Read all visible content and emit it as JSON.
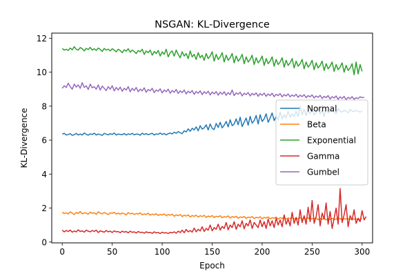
{
  "chart_data": {
    "type": "line",
    "title": "NSGAN: KL-Divergence",
    "xlabel": "Epoch",
    "ylabel": "KL-Divergence",
    "xlim": [
      -10.5,
      310.5
    ],
    "ylim": [
      -0.05,
      12.3
    ],
    "xticks": [
      0,
      50,
      100,
      150,
      200,
      250,
      300
    ],
    "yticks": [
      0,
      2,
      4,
      6,
      8,
      10,
      12
    ],
    "grid": false,
    "legend_position": "center-right",
    "x_step": 2,
    "series": [
      {
        "name": "Normal",
        "color": "#1f77b4",
        "values": [
          6.35,
          6.4,
          6.3,
          6.33,
          6.38,
          6.28,
          6.32,
          6.4,
          6.3,
          6.36,
          6.3,
          6.42,
          6.34,
          6.29,
          6.37,
          6.33,
          6.41,
          6.3,
          6.36,
          6.32,
          6.28,
          6.4,
          6.35,
          6.31,
          6.38,
          6.33,
          6.42,
          6.3,
          6.36,
          6.34,
          6.32,
          6.39,
          6.3,
          6.37,
          6.33,
          6.4,
          6.31,
          6.36,
          6.35,
          6.29,
          6.41,
          6.33,
          6.38,
          6.32,
          6.36,
          6.4,
          6.3,
          6.37,
          6.34,
          6.42,
          6.33,
          6.39,
          6.31,
          6.38,
          6.42,
          6.36,
          6.47,
          6.4,
          6.5,
          6.44,
          6.38,
          6.55,
          6.48,
          6.66,
          6.52,
          6.7,
          6.6,
          6.78,
          6.55,
          6.85,
          6.65,
          6.72,
          6.9,
          6.6,
          6.95,
          6.7,
          6.62,
          6.98,
          6.75,
          7.05,
          6.72,
          6.88,
          7.1,
          6.78,
          7.2,
          6.85,
          6.95,
          7.25,
          6.9,
          7.35,
          6.8,
          7.05,
          7.3,
          6.88,
          7.4,
          7.0,
          7.15,
          7.45,
          6.95,
          7.5,
          7.1,
          7.25,
          7.55,
          7.05,
          7.3,
          7.6,
          7.15,
          7.4,
          7.2,
          7.65,
          7.25,
          7.5,
          7.3,
          7.7,
          7.35,
          7.55,
          7.38,
          7.7,
          7.4,
          8.0,
          7.5,
          7.8,
          7.45,
          7.75,
          7.55,
          7.85,
          7.5,
          7.6,
          7.9,
          7.55,
          7.75,
          7.4,
          7.85,
          7.6,
          7.7,
          7.8,
          7.65,
          7.55,
          7.85,
          7.7,
          7.65,
          7.75,
          7.7,
          7.6,
          7.8,
          7.72,
          7.68,
          7.75,
          7.7,
          7.65,
          7.72
        ]
      },
      {
        "name": "Beta",
        "color": "#ff7f0e",
        "values": [
          1.75,
          1.68,
          1.72,
          1.65,
          1.78,
          1.7,
          1.62,
          1.74,
          1.68,
          1.8,
          1.66,
          1.72,
          1.7,
          1.64,
          1.76,
          1.69,
          1.73,
          1.63,
          1.78,
          1.7,
          1.66,
          1.74,
          1.68,
          1.62,
          1.72,
          1.69,
          1.75,
          1.65,
          1.7,
          1.64,
          1.71,
          1.67,
          1.6,
          1.73,
          1.66,
          1.7,
          1.62,
          1.68,
          1.64,
          1.72,
          1.6,
          1.66,
          1.62,
          1.7,
          1.58,
          1.65,
          1.6,
          1.67,
          1.56,
          1.63,
          1.59,
          1.66,
          1.55,
          1.62,
          1.58,
          1.64,
          1.52,
          1.6,
          1.55,
          1.62,
          1.5,
          1.58,
          1.53,
          1.6,
          1.48,
          1.56,
          1.51,
          1.58,
          1.47,
          1.55,
          1.5,
          1.57,
          1.45,
          1.53,
          1.49,
          1.56,
          1.44,
          1.52,
          1.48,
          1.55,
          1.43,
          1.5,
          1.46,
          1.54,
          1.42,
          1.5,
          1.45,
          1.52,
          1.4,
          1.48,
          1.44,
          1.51,
          1.39,
          1.47,
          1.43,
          1.5,
          1.38,
          1.46,
          1.42,
          1.49,
          1.37,
          1.45,
          1.41,
          1.48,
          1.36,
          1.44,
          1.4,
          1.47,
          1.35,
          1.43,
          1.39,
          1.46,
          1.34,
          1.42,
          1.38,
          1.45,
          1.35,
          1.41,
          1.37,
          1.44,
          1.33,
          1.4,
          1.36,
          1.43,
          1.32,
          1.39,
          1.35,
          1.42,
          1.31,
          1.38,
          1.34,
          1.41,
          1.3,
          1.37,
          1.33,
          1.4,
          1.32,
          1.36,
          1.34,
          1.39,
          1.31,
          1.37,
          1.35,
          1.38,
          1.33,
          1.36,
          1.34,
          1.37,
          1.32,
          1.35,
          1.38
        ]
      },
      {
        "name": "Exponential",
        "color": "#2ca02c",
        "values": [
          11.4,
          11.3,
          11.35,
          11.28,
          11.42,
          11.32,
          11.5,
          11.35,
          11.3,
          11.45,
          11.38,
          11.25,
          11.4,
          11.33,
          11.46,
          11.3,
          11.38,
          11.28,
          11.42,
          11.34,
          11.22,
          11.4,
          11.3,
          11.36,
          11.25,
          11.38,
          11.3,
          11.2,
          11.35,
          11.28,
          11.15,
          11.32,
          11.24,
          11.38,
          11.18,
          11.3,
          11.22,
          11.1,
          11.28,
          11.2,
          11.35,
          11.05,
          11.25,
          11.15,
          11.3,
          11.0,
          11.22,
          11.1,
          11.28,
          10.95,
          11.2,
          11.05,
          11.35,
          10.9,
          11.15,
          11.25,
          10.95,
          11.3,
          11.05,
          10.85,
          11.2,
          10.95,
          11.1,
          10.8,
          11.25,
          10.9,
          11.05,
          10.75,
          11.15,
          10.85,
          11.0,
          10.7,
          11.1,
          10.8,
          10.95,
          11.2,
          10.65,
          11.05,
          10.75,
          10.9,
          11.15,
          10.6,
          11.0,
          10.7,
          10.85,
          11.1,
          10.55,
          10.95,
          10.65,
          10.8,
          11.05,
          10.5,
          10.9,
          10.6,
          10.75,
          11.0,
          10.45,
          10.85,
          10.55,
          10.7,
          10.95,
          10.4,
          10.8,
          10.5,
          10.65,
          10.9,
          10.35,
          10.75,
          10.45,
          10.6,
          10.85,
          10.3,
          10.7,
          10.4,
          10.55,
          10.8,
          10.25,
          10.65,
          10.35,
          10.5,
          10.75,
          10.2,
          10.6,
          10.3,
          10.45,
          10.7,
          10.15,
          10.55,
          10.25,
          10.4,
          10.65,
          10.1,
          10.5,
          10.2,
          10.35,
          10.6,
          10.05,
          10.45,
          10.15,
          10.3,
          10.55,
          10.0,
          10.4,
          10.1,
          10.25,
          10.5,
          9.85,
          10.6,
          9.9,
          10.45,
          10.05
        ]
      },
      {
        "name": "Gamma",
        "color": "#d62728",
        "values": [
          0.7,
          0.6,
          0.68,
          0.62,
          0.7,
          0.58,
          0.65,
          0.6,
          0.72,
          0.62,
          0.66,
          0.58,
          0.7,
          0.64,
          0.6,
          0.68,
          0.62,
          0.7,
          0.56,
          0.66,
          0.62,
          0.58,
          0.68,
          0.6,
          0.64,
          0.56,
          0.66,
          0.6,
          0.62,
          0.55,
          0.64,
          0.58,
          0.62,
          0.54,
          0.64,
          0.57,
          0.6,
          0.53,
          0.62,
          0.56,
          0.58,
          0.52,
          0.6,
          0.55,
          0.57,
          0.51,
          0.6,
          0.54,
          0.56,
          0.5,
          0.58,
          0.53,
          0.55,
          0.5,
          0.57,
          0.54,
          0.6,
          0.52,
          0.64,
          0.56,
          0.7,
          0.55,
          0.74,
          0.6,
          0.68,
          0.58,
          0.82,
          0.6,
          0.75,
          0.65,
          0.9,
          0.62,
          0.8,
          0.7,
          1.0,
          0.66,
          0.85,
          0.75,
          1.05,
          0.7,
          0.92,
          0.8,
          1.15,
          0.72,
          1.0,
          0.85,
          1.2,
          0.75,
          1.05,
          0.9,
          1.25,
          0.78,
          1.1,
          0.95,
          1.3,
          0.8,
          1.15,
          1.0,
          0.85,
          1.3,
          0.9,
          1.2,
          0.8,
          1.35,
          0.95,
          1.25,
          0.85,
          1.4,
          1.0,
          1.3,
          0.9,
          1.6,
          1.05,
          1.35,
          0.95,
          1.75,
          1.1,
          1.45,
          1.0,
          1.9,
          1.15,
          1.55,
          1.05,
          2.05,
          1.2,
          2.45,
          1.1,
          1.5,
          2.2,
          0.95,
          1.7,
          1.35,
          2.3,
          1.05,
          1.8,
          0.8,
          1.4,
          2.0,
          1.05,
          3.15,
          1.15,
          1.6,
          2.2,
          0.9,
          1.55,
          1.3,
          1.9,
          1.1,
          1.4,
          1.2,
          1.85,
          1.3,
          1.5
        ]
      },
      {
        "name": "Gumbel",
        "color": "#9467bd",
        "values": [
          9.05,
          9.2,
          9.1,
          9.35,
          9.15,
          9.0,
          9.3,
          9.12,
          9.25,
          9.05,
          9.38,
          9.1,
          9.2,
          8.98,
          9.3,
          9.08,
          9.15,
          9.0,
          9.25,
          8.95,
          9.18,
          9.05,
          8.92,
          9.15,
          9.0,
          9.2,
          8.9,
          9.1,
          8.95,
          9.12,
          8.88,
          9.05,
          8.95,
          9.15,
          8.85,
          9.05,
          8.92,
          9.1,
          8.85,
          9.0,
          8.9,
          9.08,
          8.82,
          8.98,
          8.9,
          9.05,
          8.8,
          8.95,
          8.88,
          9.02,
          8.78,
          8.95,
          8.85,
          9.0,
          8.76,
          8.92,
          8.82,
          8.98,
          8.75,
          8.9,
          8.8,
          8.95,
          8.72,
          8.88,
          8.78,
          8.92,
          8.7,
          8.86,
          8.76,
          8.9,
          8.68,
          8.85,
          8.74,
          8.88,
          8.66,
          8.83,
          8.72,
          8.86,
          8.65,
          8.82,
          8.7,
          8.85,
          8.64,
          8.8,
          8.68,
          8.95,
          8.62,
          8.78,
          8.7,
          8.82,
          8.6,
          8.76,
          8.68,
          8.8,
          8.6,
          8.75,
          8.66,
          8.78,
          8.58,
          8.74,
          8.64,
          8.77,
          8.58,
          8.72,
          8.62,
          8.76,
          8.56,
          8.7,
          8.62,
          8.74,
          8.55,
          8.68,
          8.6,
          8.72,
          8.55,
          8.66,
          8.58,
          8.7,
          8.52,
          8.65,
          8.56,
          8.68,
          8.5,
          8.62,
          8.55,
          8.66,
          8.48,
          8.6,
          8.52,
          8.64,
          8.45,
          8.58,
          8.5,
          8.62,
          8.42,
          8.56,
          8.48,
          8.6,
          8.4,
          8.55,
          8.45,
          8.58,
          8.38,
          8.52,
          8.44,
          8.56,
          8.4,
          8.5,
          8.45,
          8.55,
          8.5,
          8.52
        ]
      }
    ]
  }
}
